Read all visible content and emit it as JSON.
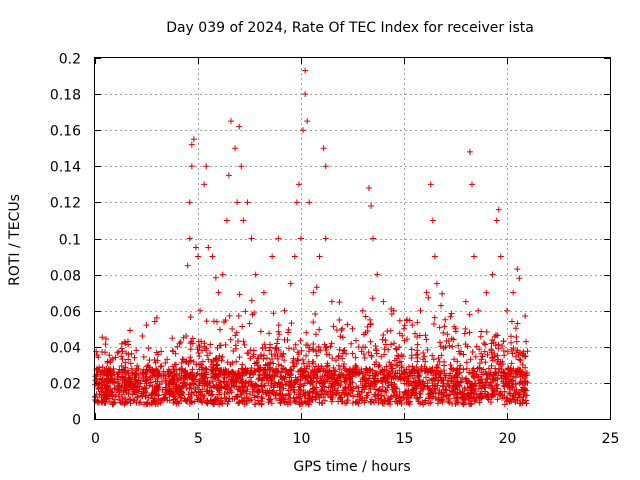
{
  "chart_data": {
    "type": "scatter",
    "title": "Day 039 of 2024, Rate Of TEC Index for receiver ista",
    "xlabel": "GPS time / hours",
    "ylabel": "ROTI / TECUs",
    "xlim": [
      0,
      25
    ],
    "ylim": [
      0,
      0.2
    ],
    "xticks": [
      0,
      5,
      10,
      15,
      20,
      25
    ],
    "xtick_labels": [
      "0",
      "5",
      "10",
      "15",
      "20",
      "25"
    ],
    "yticks": [
      0,
      0.02,
      0.04,
      0.06,
      0.08,
      0.1,
      0.12,
      0.14,
      0.16,
      0.18,
      0.2
    ],
    "ytick_labels": [
      "0",
      "0.02",
      "0.04",
      "0.06",
      "0.08",
      "0.1",
      "0.12",
      "0.14",
      "0.16",
      "0.18",
      "0.2"
    ],
    "grid": true,
    "marker": "+",
    "marker_color": "#e00000",
    "data_range_hours": [
      0,
      21
    ],
    "series": [
      {
        "name": "ROTI",
        "points": [
          [
            0.1,
            0.028
          ],
          [
            0.3,
            0.026
          ],
          [
            0.6,
            0.031
          ],
          [
            1.0,
            0.034
          ],
          [
            1.3,
            0.039
          ],
          [
            1.6,
            0.043
          ],
          [
            1.7,
            0.049
          ],
          [
            2.0,
            0.038
          ],
          [
            2.3,
            0.046
          ],
          [
            2.5,
            0.052
          ],
          [
            2.9,
            0.054
          ],
          [
            3.0,
            0.056
          ],
          [
            3.5,
            0.033
          ],
          [
            4.0,
            0.04
          ],
          [
            4.3,
            0.045
          ],
          [
            4.5,
            0.085
          ],
          [
            4.6,
            0.1
          ],
          [
            4.6,
            0.12
          ],
          [
            4.7,
            0.14
          ],
          [
            4.7,
            0.152
          ],
          [
            4.8,
            0.155
          ],
          [
            4.9,
            0.095
          ],
          [
            5.0,
            0.09
          ],
          [
            5.1,
            0.06
          ],
          [
            5.3,
            0.13
          ],
          [
            5.4,
            0.14
          ],
          [
            5.5,
            0.095
          ],
          [
            5.7,
            0.09
          ],
          [
            6.0,
            0.07
          ],
          [
            6.2,
            0.08
          ],
          [
            6.4,
            0.11
          ],
          [
            6.5,
            0.135
          ],
          [
            6.6,
            0.165
          ],
          [
            6.8,
            0.15
          ],
          [
            6.9,
            0.12
          ],
          [
            7.0,
            0.162
          ],
          [
            7.1,
            0.14
          ],
          [
            7.2,
            0.11
          ],
          [
            7.4,
            0.12
          ],
          [
            7.6,
            0.1
          ],
          [
            7.8,
            0.08
          ],
          [
            8.2,
            0.07
          ],
          [
            8.6,
            0.09
          ],
          [
            8.9,
            0.1
          ],
          [
            9.2,
            0.06
          ],
          [
            9.5,
            0.075
          ],
          [
            9.7,
            0.09
          ],
          [
            9.8,
            0.12
          ],
          [
            9.9,
            0.13
          ],
          [
            10.0,
            0.1
          ],
          [
            10.1,
            0.16
          ],
          [
            10.2,
            0.18
          ],
          [
            10.2,
            0.193
          ],
          [
            10.3,
            0.165
          ],
          [
            10.4,
            0.12
          ],
          [
            10.6,
            0.07
          ],
          [
            10.9,
            0.09
          ],
          [
            11.1,
            0.15
          ],
          [
            11.2,
            0.14
          ],
          [
            11.2,
            0.1
          ],
          [
            11.5,
            0.065
          ],
          [
            12.0,
            0.05
          ],
          [
            12.5,
            0.05
          ],
          [
            13.0,
            0.06
          ],
          [
            13.3,
            0.128
          ],
          [
            13.4,
            0.118
          ],
          [
            13.5,
            0.1
          ],
          [
            13.7,
            0.08
          ],
          [
            14.0,
            0.065
          ],
          [
            14.5,
            0.06
          ],
          [
            15.0,
            0.05
          ],
          [
            15.4,
            0.052
          ],
          [
            15.8,
            0.06
          ],
          [
            16.1,
            0.07
          ],
          [
            16.3,
            0.13
          ],
          [
            16.4,
            0.11
          ],
          [
            16.5,
            0.09
          ],
          [
            16.6,
            0.075
          ],
          [
            17.0,
            0.055
          ],
          [
            17.5,
            0.05
          ],
          [
            18.0,
            0.065
          ],
          [
            18.2,
            0.148
          ],
          [
            18.3,
            0.13
          ],
          [
            18.4,
            0.09
          ],
          [
            18.6,
            0.06
          ],
          [
            19.0,
            0.07
          ],
          [
            19.3,
            0.08
          ],
          [
            19.5,
            0.11
          ],
          [
            19.6,
            0.116
          ],
          [
            19.7,
            0.09
          ],
          [
            20.0,
            0.06
          ],
          [
            20.3,
            0.07
          ],
          [
            20.5,
            0.083
          ],
          [
            20.6,
            0.078
          ],
          [
            20.9,
            0.035
          ]
        ]
      }
    ]
  }
}
